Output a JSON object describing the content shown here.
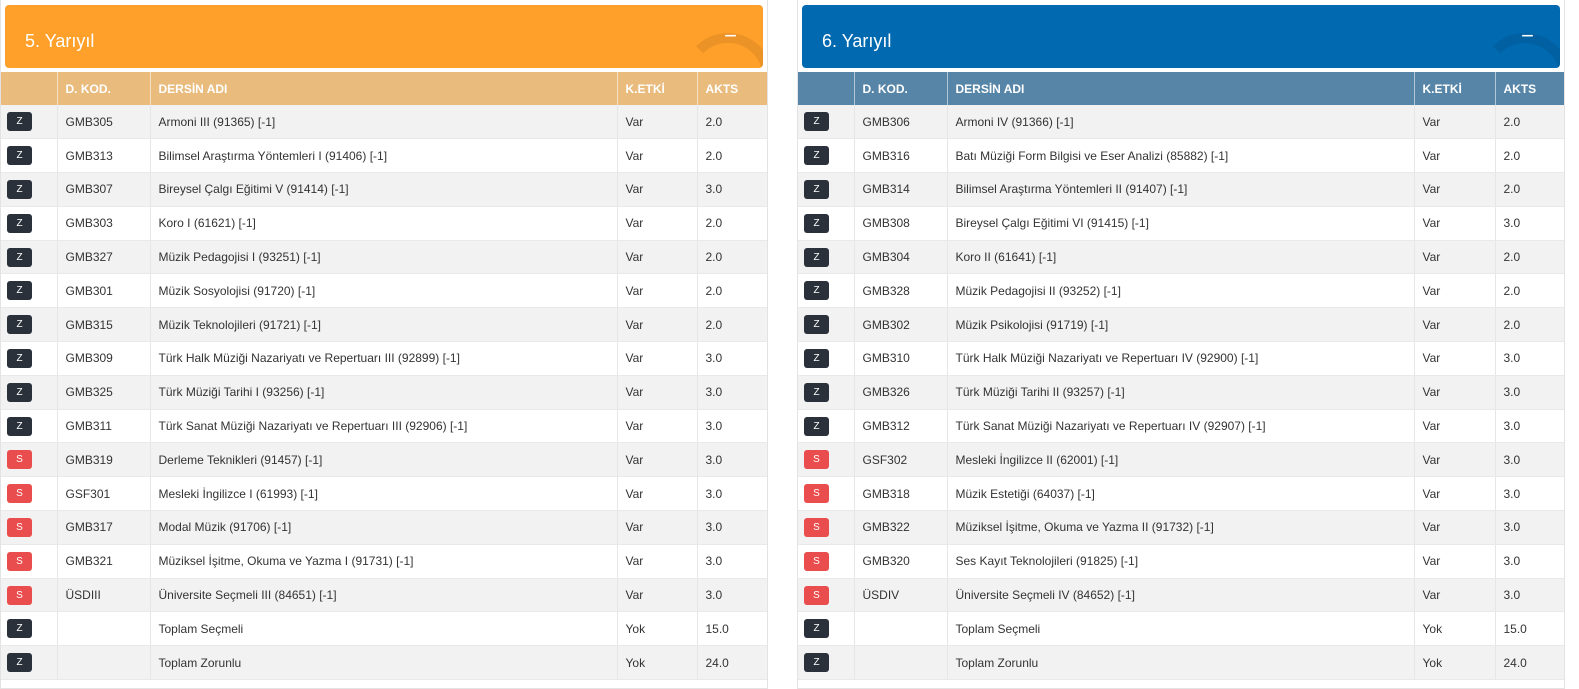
{
  "colors": {
    "left_header": "#ffa02a",
    "right_header": "#0069af",
    "zorunlu_badge": "#2b313b",
    "secmeli_badge": "#ea4d4d"
  },
  "columns": [
    "",
    "D. KOD.",
    "DERSİN ADI",
    "K.ETKİ",
    "AKTS"
  ],
  "collapse_icon": "minus-icon",
  "panels": [
    {
      "title": "5. Yarıyıl",
      "collapse_label": "−",
      "rows": [
        {
          "type": "Z",
          "code": "GMB305",
          "name": "Armoni III (91365) [-1]",
          "etki": "Var",
          "akts": "2.0"
        },
        {
          "type": "Z",
          "code": "GMB313",
          "name": "Bilimsel Araştırma Yöntemleri I (91406) [-1]",
          "etki": "Var",
          "akts": "2.0"
        },
        {
          "type": "Z",
          "code": "GMB307",
          "name": "Bireysel Çalgı Eğitimi V (91414) [-1]",
          "etki": "Var",
          "akts": "3.0"
        },
        {
          "type": "Z",
          "code": "GMB303",
          "name": "Koro I (61621) [-1]",
          "etki": "Var",
          "akts": "2.0"
        },
        {
          "type": "Z",
          "code": "GMB327",
          "name": "Müzik Pedagojisi I (93251) [-1]",
          "etki": "Var",
          "akts": "2.0"
        },
        {
          "type": "Z",
          "code": "GMB301",
          "name": "Müzik Sosyolojisi (91720) [-1]",
          "etki": "Var",
          "akts": "2.0"
        },
        {
          "type": "Z",
          "code": "GMB315",
          "name": "Müzik Teknolojileri (91721) [-1]",
          "etki": "Var",
          "akts": "2.0"
        },
        {
          "type": "Z",
          "code": "GMB309",
          "name": "Türk Halk Müziği Nazariyatı ve Repertuarı III (92899) [-1]",
          "etki": "Var",
          "akts": "3.0"
        },
        {
          "type": "Z",
          "code": "GMB325",
          "name": "Türk Müziği Tarihi I (93256) [-1]",
          "etki": "Var",
          "akts": "3.0"
        },
        {
          "type": "Z",
          "code": "GMB311",
          "name": "Türk Sanat Müziği Nazariyatı ve Repertuarı III (92906) [-1]",
          "etki": "Var",
          "akts": "3.0"
        },
        {
          "type": "S",
          "code": "GMB319",
          "name": "Derleme Teknikleri (91457) [-1]",
          "etki": "Var",
          "akts": "3.0"
        },
        {
          "type": "S",
          "code": "GSF301",
          "name": "Mesleki İngilizce I (61993) [-1]",
          "etki": "Var",
          "akts": "3.0"
        },
        {
          "type": "S",
          "code": "GMB317",
          "name": "Modal Müzik (91706) [-1]",
          "etki": "Var",
          "akts": "3.0"
        },
        {
          "type": "S",
          "code": "GMB321",
          "name": "Müziksel İşitme, Okuma ve Yazma I (91731) [-1]",
          "etki": "Var",
          "akts": "3.0"
        },
        {
          "type": "S",
          "code": "ÜSDIII",
          "name": "Üniversite Seçmeli III (84651) [-1]",
          "etki": "Var",
          "akts": "3.0"
        },
        {
          "type": "Z",
          "code": "",
          "name": "Toplam Seçmeli",
          "etki": "Yok",
          "akts": "15.0"
        },
        {
          "type": "Z",
          "code": "",
          "name": "Toplam Zorunlu",
          "etki": "Yok",
          "akts": "24.0"
        }
      ]
    },
    {
      "title": "6. Yarıyıl",
      "collapse_label": "−",
      "rows": [
        {
          "type": "Z",
          "code": "GMB306",
          "name": "Armoni IV (91366) [-1]",
          "etki": "Var",
          "akts": "2.0"
        },
        {
          "type": "Z",
          "code": "GMB316",
          "name": "Batı Müziği Form Bilgisi ve Eser Analizi (85882) [-1]",
          "etki": "Var",
          "akts": "2.0"
        },
        {
          "type": "Z",
          "code": "GMB314",
          "name": "Bilimsel Araştırma Yöntemleri II (91407) [-1]",
          "etki": "Var",
          "akts": "2.0"
        },
        {
          "type": "Z",
          "code": "GMB308",
          "name": "Bireysel Çalgı Eğitimi VI (91415) [-1]",
          "etki": "Var",
          "akts": "3.0"
        },
        {
          "type": "Z",
          "code": "GMB304",
          "name": "Koro II (61641) [-1]",
          "etki": "Var",
          "akts": "2.0"
        },
        {
          "type": "Z",
          "code": "GMB328",
          "name": "Müzik Pedagojisi II (93252) [-1]",
          "etki": "Var",
          "akts": "2.0"
        },
        {
          "type": "Z",
          "code": "GMB302",
          "name": "Müzik Psikolojisi (91719) [-1]",
          "etki": "Var",
          "akts": "2.0"
        },
        {
          "type": "Z",
          "code": "GMB310",
          "name": "Türk Halk Müziği Nazariyatı ve Repertuarı IV (92900) [-1]",
          "etki": "Var",
          "akts": "3.0"
        },
        {
          "type": "Z",
          "code": "GMB326",
          "name": "Türk Müziği Tarihi II (93257) [-1]",
          "etki": "Var",
          "akts": "3.0"
        },
        {
          "type": "Z",
          "code": "GMB312",
          "name": "Türk Sanat Müziği Nazariyatı ve Repertuarı IV (92907) [-1]",
          "etki": "Var",
          "akts": "3.0"
        },
        {
          "type": "S",
          "code": "GSF302",
          "name": "Mesleki İngilizce II (62001) [-1]",
          "etki": "Var",
          "akts": "3.0"
        },
        {
          "type": "S",
          "code": "GMB318",
          "name": "Müzik Estetiği (64037) [-1]",
          "etki": "Var",
          "akts": "3.0"
        },
        {
          "type": "S",
          "code": "GMB322",
          "name": "Müziksel İşitme, Okuma ve Yazma II (91732) [-1]",
          "etki": "Var",
          "akts": "3.0"
        },
        {
          "type": "S",
          "code": "GMB320",
          "name": "Ses Kayıt Teknolojileri (91825) [-1]",
          "etki": "Var",
          "akts": "3.0"
        },
        {
          "type": "S",
          "code": "ÜSDIV",
          "name": "Üniversite Seçmeli IV (84652) [-1]",
          "etki": "Var",
          "akts": "3.0"
        },
        {
          "type": "Z",
          "code": "",
          "name": "Toplam Seçmeli",
          "etki": "Yok",
          "akts": "15.0"
        },
        {
          "type": "Z",
          "code": "",
          "name": "Toplam Zorunlu",
          "etki": "Yok",
          "akts": "24.0"
        }
      ]
    }
  ]
}
